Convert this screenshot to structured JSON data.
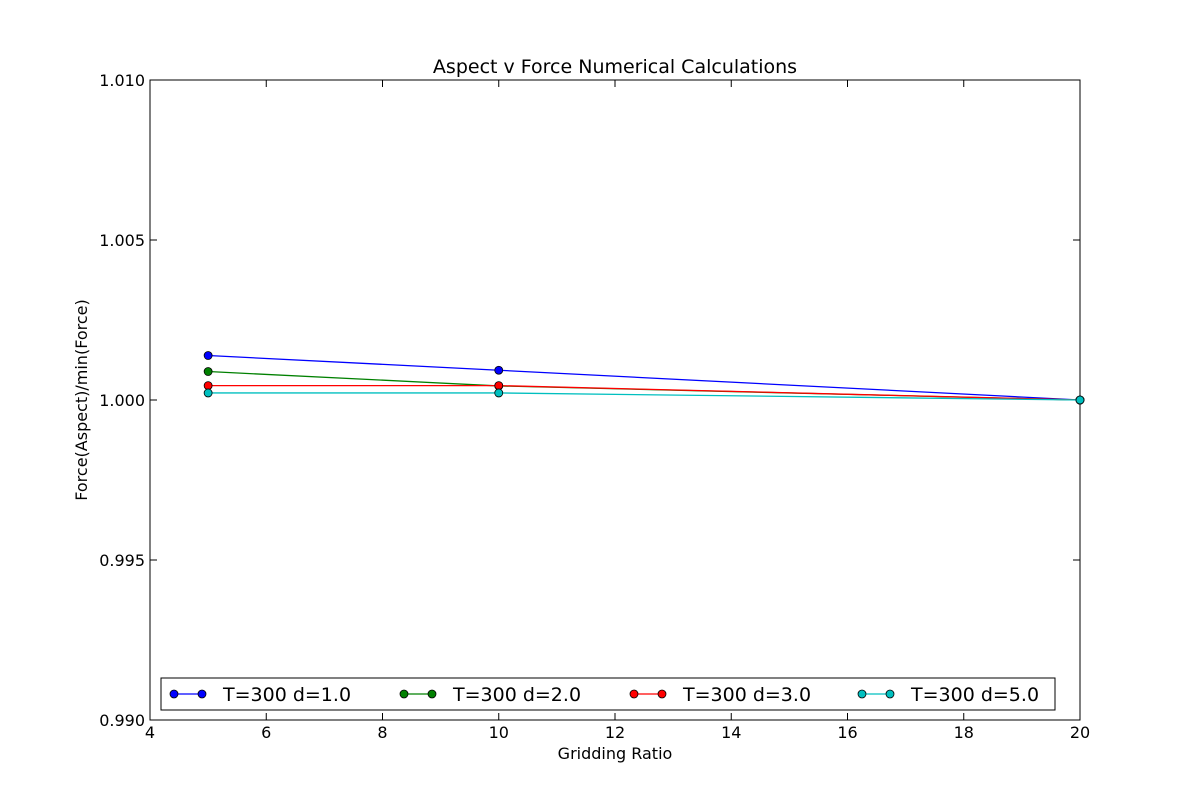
{
  "chart_data": {
    "type": "line",
    "title": "Aspect v Force Numerical Calculations",
    "xlabel": "Gridding Ratio",
    "ylabel": "Force(Aspect)/min(Force)",
    "xlim": [
      4,
      20
    ],
    "ylim": [
      0.99,
      1.01
    ],
    "xticks": [
      4,
      6,
      8,
      10,
      12,
      14,
      16,
      18,
      20
    ],
    "xtick_labels": [
      "4",
      "6",
      "8",
      "10",
      "12",
      "14",
      "16",
      "18",
      "20"
    ],
    "yticks": [
      0.99,
      0.995,
      1.0,
      1.005,
      1.01
    ],
    "ytick_labels": [
      "0.990",
      "0.995",
      "1.000",
      "1.005",
      "1.010"
    ],
    "grid": false,
    "legend_position": "bottom",
    "series": [
      {
        "name": "T=300 d=1.0",
        "color": "#0000ff",
        "x": [
          5,
          10,
          20
        ],
        "y": [
          1.00139,
          1.00093,
          1.0
        ]
      },
      {
        "name": "T=300 d=2.0",
        "color": "#008000",
        "x": [
          5,
          10,
          20
        ],
        "y": [
          1.00089,
          1.00044,
          1.0
        ]
      },
      {
        "name": "T=300 d=3.0",
        "color": "#ff0000",
        "x": [
          5,
          10,
          20
        ],
        "y": [
          1.00045,
          1.00045,
          1.0
        ]
      },
      {
        "name": "T=300 d=5.0",
        "color": "#00bfbf",
        "x": [
          5,
          10,
          20
        ],
        "y": [
          1.00022,
          1.00022,
          1.0
        ]
      }
    ]
  }
}
